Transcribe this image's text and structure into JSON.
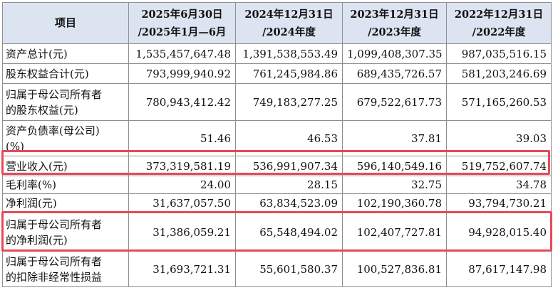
{
  "colors": {
    "header_bg": "#dde4f1",
    "highlight": "#e64a5a",
    "border": "#8f8f8f"
  },
  "table": {
    "header": {
      "item": "项目",
      "periods": [
        {
          "line1": "2025年6月30日",
          "line2": "/2025年1月—6月"
        },
        {
          "line1": "2024年12月31日",
          "line2": "/2024年度"
        },
        {
          "line1": "2023年12月31日",
          "line2": "/2023年度"
        },
        {
          "line1": "2022年12月31日",
          "line2": "/2022年度"
        }
      ]
    },
    "rows": [
      {
        "label_line1": "资产总计(元)",
        "label_line2": "",
        "values": [
          "1,535,457,647.48",
          "1,391,538,553.49",
          "1,099,408,307.35",
          "987,035,516.15"
        ]
      },
      {
        "label_line1": "股东权益合计(元)",
        "label_line2": "",
        "values": [
          "793,999,940.92",
          "761,245,984.86",
          "689,435,726.57",
          "581,203,246.69"
        ]
      },
      {
        "label_line1": "归属于母公司所有者",
        "label_line2": "的股东权益(元)",
        "values": [
          "780,943,412.42",
          "749,183,277.25",
          "679,522,617.73",
          "571,165,260.53"
        ]
      },
      {
        "label_line1": "资产负债率(母公司)",
        "label_line2": "(%)",
        "values": [
          "51.46",
          "46.53",
          "37.81",
          "39.03"
        ]
      },
      {
        "label_line1": "营业收入(元)",
        "label_line2": "",
        "values": [
          "373,319,581.19",
          "536,991,907.34",
          "596,140,549.16",
          "519,752,607.74"
        ],
        "highlighted": true
      },
      {
        "label_line1": "毛利率(%)",
        "label_line2": "",
        "values": [
          "24.00",
          "28.15",
          "32.75",
          "34.78"
        ]
      },
      {
        "label_line1": "净利润(元)",
        "label_line2": "",
        "values": [
          "31,637,057.50",
          "63,834,523.09",
          "102,190,360.78",
          "93,794,730.21"
        ]
      },
      {
        "label_line1": "归属于母公司所有者",
        "label_line2": "的净利润(元)",
        "values": [
          "31,386,059.21",
          "65,548,494.02",
          "102,407,727.81",
          "94,928,015.40"
        ],
        "highlighted": true
      },
      {
        "label_line1": "归属于母公司所有者",
        "label_line2": "的扣除非经常性损益",
        "values": [
          "31,693,721.31",
          "55,601,580.37",
          "100,527,836.81",
          "87,617,147.98"
        ]
      }
    ]
  }
}
